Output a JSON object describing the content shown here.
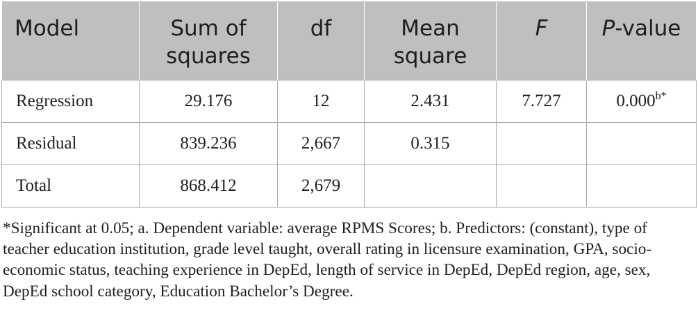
{
  "table": {
    "columns": [
      "Model",
      "Sum of squares",
      "df",
      "Mean square",
      "F",
      "P-value"
    ],
    "header_p_value_part1": "P",
    "header_p_value_part2": "-value",
    "rows": [
      {
        "model": "Regression",
        "sum_of_squares": "29.176",
        "df": "12",
        "mean_square": "2.431",
        "f": "7.727",
        "p_value": "0.000",
        "p_value_note": "b*"
      },
      {
        "model": "Residual",
        "sum_of_squares": "839.236",
        "df": "2,667",
        "mean_square": "0.315",
        "f": "",
        "p_value": "",
        "p_value_note": ""
      },
      {
        "model": "Total",
        "sum_of_squares": "868.412",
        "df": "2,679",
        "mean_square": "",
        "f": "",
        "p_value": "",
        "p_value_note": ""
      }
    ]
  },
  "footnote": "*Significant at 0.05; a. Dependent variable: average RPMS Scores; b. Predictors: (constant), type of teacher education institution, grade level taught, overall rating in licensure examination, GPA, socio-economic status, teaching experience in DepEd, length of service in DepEd, DepEd region, age, sex, DepEd school category, Education Bachelor’s Degree.",
  "colors": {
    "header_background": "#bfbfbf",
    "grid_line": "#a8a8a8",
    "text": "#1f1f1f"
  }
}
